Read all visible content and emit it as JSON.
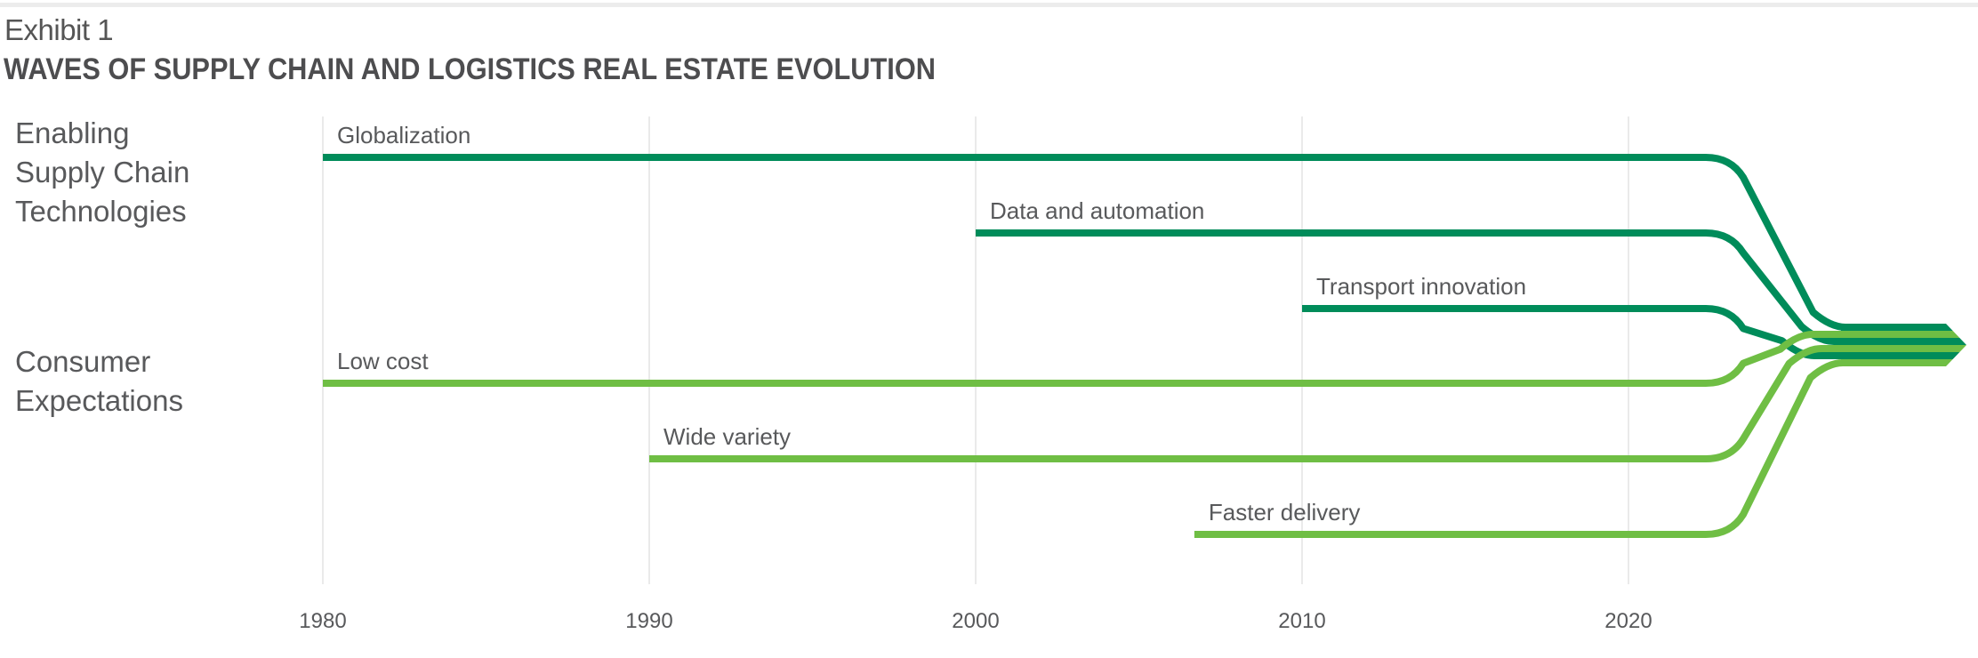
{
  "header": {
    "exhibit": "Exhibit 1",
    "title": "WAVES OF SUPPLY CHAIN AND LOGISTICS REAL ESTATE EVOLUTION"
  },
  "groups": [
    {
      "label": "Enabling\nSupply Chain\nTechnologies"
    },
    {
      "label": "Consumer\nExpectations"
    }
  ],
  "colors": {
    "technology": "#008c5a",
    "consumer": "#6fbe44",
    "grid": "#e3e3e3",
    "text": "#58595b"
  },
  "chart_data": {
    "type": "timeline",
    "title": "WAVES OF SUPPLY CHAIN AND LOGISTICS REAL ESTATE EVOLUTION",
    "xlabel": "",
    "ylabel": "",
    "x_range": [
      1980,
      2030
    ],
    "ticks": [
      "1980",
      "1990",
      "2000",
      "2010",
      "2020"
    ],
    "grid": true,
    "converge_year": 2024,
    "waves": [
      {
        "name": "Globalization",
        "group": "technology",
        "start": 1980
      },
      {
        "name": "Data and automation",
        "group": "technology",
        "start": 2000
      },
      {
        "name": "Transport innovation",
        "group": "technology",
        "start": 2010
      },
      {
        "name": "Low cost",
        "group": "consumer",
        "start": 1980
      },
      {
        "name": "Wide variety",
        "group": "consumer",
        "start": 1990
      },
      {
        "name": "Faster delivery",
        "group": "consumer",
        "start": 2006.7
      }
    ],
    "bundle_order": [
      "Globalization",
      "Low cost",
      "Data and automation",
      "Wide variety",
      "Transport innovation",
      "Faster delivery"
    ]
  }
}
